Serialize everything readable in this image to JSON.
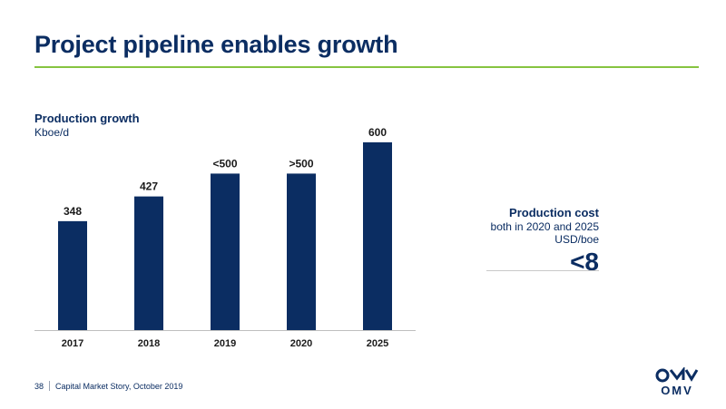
{
  "slide": {
    "title": "Project pipeline enables growth",
    "accent_color": "#86c440",
    "brand_color": "#0b2d62"
  },
  "chart_data": {
    "type": "bar",
    "title": "Production growth",
    "subtitle": "Kboe/d",
    "categories": [
      "2017",
      "2018",
      "2019",
      "2020",
      "2025"
    ],
    "values": [
      348,
      427,
      500,
      500,
      600
    ],
    "data_labels": [
      "348",
      "427",
      "<500",
      ">500",
      "600"
    ],
    "ylim": [
      0,
      620
    ],
    "bar_color": "#0b2d62",
    "grid": false,
    "legend": "none"
  },
  "cost": {
    "title": "Production cost",
    "note": "both in 2020 and 2025",
    "unit": "USD/boe",
    "value": "<8"
  },
  "footer": {
    "page_number": "38",
    "text": "Capital Market Story, October 2019"
  },
  "logo": {
    "icon": "omv-logo-icon",
    "text": "OMV"
  }
}
